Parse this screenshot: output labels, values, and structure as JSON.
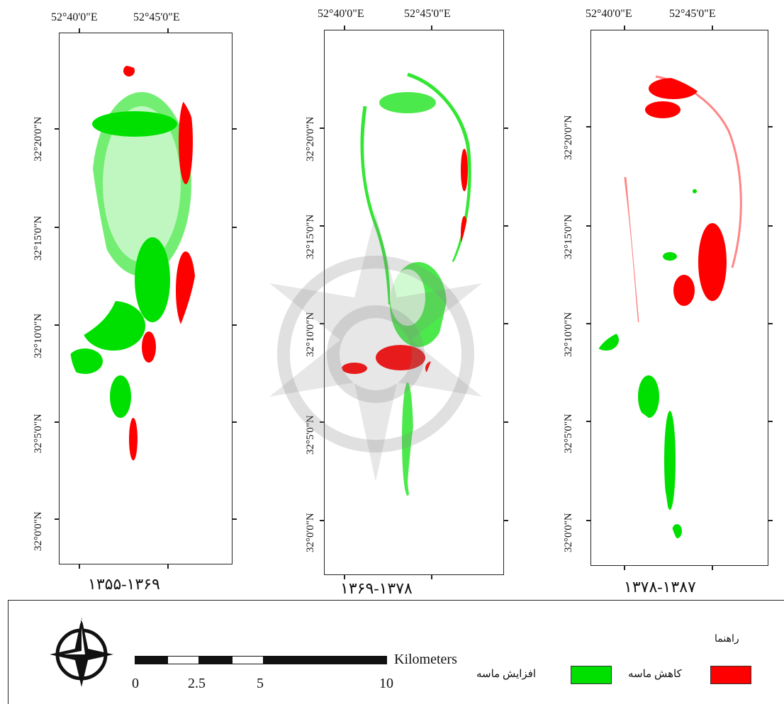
{
  "panels": [
    {
      "id": "p1",
      "lon_labels": [
        "52°40'0\"E",
        "52°45'0\"E"
      ],
      "lat_labels": [
        "32°20'0\"N",
        "32°15'0\"N",
        "32°10'0\"N",
        "32°5'0\"N",
        "32°0'0\"N"
      ],
      "period": "۱۳۵۵-۱۳۶۹"
    },
    {
      "id": "p2",
      "lon_labels": [
        "52°40'0\"E",
        "52°45'0\"E"
      ],
      "lat_labels": [
        "32°20'0\"N",
        "32°15'0\"N",
        "32°10'0\"N",
        "32°5'0\"N",
        "32°0'0\"N"
      ],
      "period": "۱۳۶۹-۱۳۷۸"
    },
    {
      "id": "p3",
      "lon_labels": [
        "52°40'0\"E",
        "52°45'0\"E"
      ],
      "lat_labels": [
        "32°20'0\"N",
        "32°15'0\"N",
        "32°10'0\"N",
        "32°5'0\"N",
        "32°0'0\"N"
      ],
      "period": "۱۳۷۸-۱۳۸۷"
    }
  ],
  "legend": {
    "title": "راهنما",
    "items": [
      {
        "label": "کاهش ماسه",
        "color": "#ff0000"
      },
      {
        "label": "افزایش ماسه",
        "color": "#00e000"
      }
    ]
  },
  "scale_bar": {
    "unit": "Kilometers",
    "labels": [
      "0",
      "2.5",
      "5",
      "10"
    ]
  },
  "colors": {
    "sand_decrease": "#ff0000",
    "sand_increase": "#00e000",
    "frame": "#222222"
  },
  "icons": {
    "north_arrow": "north-arrow-compass-icon",
    "watermark": "academic-institute-watermark"
  }
}
